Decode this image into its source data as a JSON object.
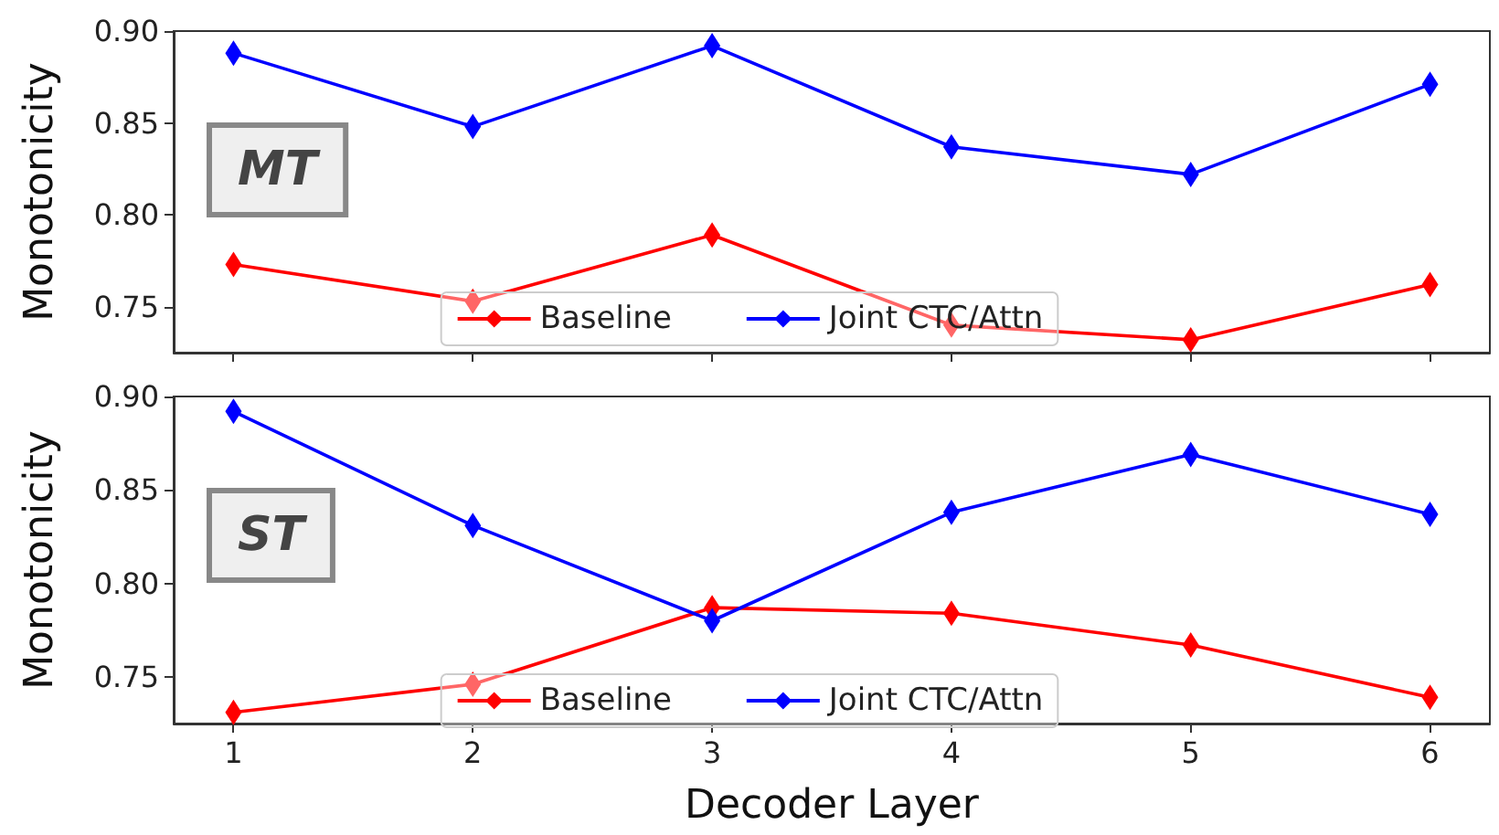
{
  "chart_data": [
    {
      "type": "line",
      "ylabel": "Monotonicity",
      "annotations": [
        "MT"
      ],
      "x": [
        1,
        2,
        3,
        4,
        5,
        6
      ],
      "xlim": [
        0.75,
        6.25
      ],
      "xticks": [
        1,
        2,
        3,
        4,
        5,
        6
      ],
      "ylim": [
        0.725,
        0.9
      ],
      "yticks": [
        {
          "value": 0.75,
          "label": "0.75"
        },
        {
          "value": 0.8,
          "label": "0.80"
        },
        {
          "value": 0.85,
          "label": "0.85"
        },
        {
          "value": 0.9,
          "label": "0.90"
        }
      ],
      "tick_labels": "y",
      "marker": "diamond",
      "line_style": "solid",
      "legend": "bottom",
      "grid": false,
      "series": [
        {
          "name": "Baseline",
          "color": "#ff0000",
          "values": [
            0.773,
            0.753,
            0.789,
            0.74,
            0.732,
            0.762
          ]
        },
        {
          "name": "Joint CTC/Attn",
          "color": "#0000ff",
          "values": [
            0.888,
            0.848,
            0.892,
            0.837,
            0.822,
            0.871
          ]
        }
      ]
    },
    {
      "type": "line",
      "xlabel": "Decoder Layer",
      "ylabel": "Monotonicity",
      "annotations": [
        "ST"
      ],
      "x": [
        1,
        2,
        3,
        4,
        5,
        6
      ],
      "xlim": [
        0.75,
        6.25
      ],
      "xticks": [
        1,
        2,
        3,
        4,
        5,
        6
      ],
      "ylim": [
        0.725,
        0.9
      ],
      "yticks": [
        {
          "value": 0.75,
          "label": "0.75"
        },
        {
          "value": 0.8,
          "label": "0.80"
        },
        {
          "value": 0.85,
          "label": "0.85"
        },
        {
          "value": 0.9,
          "label": "0.90"
        }
      ],
      "marker": "diamond",
      "line_style": "solid",
      "legend": "bottom",
      "grid": false,
      "series": [
        {
          "name": "Baseline",
          "color": "#ff0000",
          "values": [
            0.731,
            0.746,
            0.787,
            0.784,
            0.767,
            0.739
          ]
        },
        {
          "name": "Joint CTC/Attn",
          "color": "#0000ff",
          "values": [
            0.892,
            0.831,
            0.78,
            0.838,
            0.869,
            0.837
          ]
        }
      ]
    }
  ]
}
